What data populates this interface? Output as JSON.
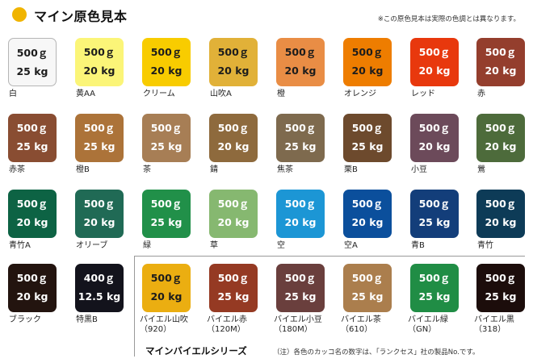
{
  "header": {
    "title": "マイン原色見本",
    "note": "※この原色見本は実際の色調とは異なります。"
  },
  "swatches": [
    {
      "weight": "500ｇ",
      "pack": "25 kg",
      "name": "白",
      "color": "#f7f7f7",
      "text_color": "#1c1c1c"
    },
    {
      "weight": "500ｇ",
      "pack": "20 kg",
      "name": "黄AA",
      "color": "#fbf578",
      "text_color": "#1c1c1c"
    },
    {
      "weight": "500ｇ",
      "pack": "20 kg",
      "name": "クリーム",
      "color": "#f8cc00",
      "text_color": "#1c1c1c"
    },
    {
      "weight": "500ｇ",
      "pack": "20 kg",
      "name": "山吹A",
      "color": "#e1b138",
      "text_color": "#1c1c1c"
    },
    {
      "weight": "500ｇ",
      "pack": "20 kg",
      "name": "橙",
      "color": "#e98d45",
      "text_color": "#1c1c1c"
    },
    {
      "weight": "500ｇ",
      "pack": "20 kg",
      "name": "オレンジ",
      "color": "#ee7d00",
      "text_color": "#1c1c1c"
    },
    {
      "weight": "500ｇ",
      "pack": "20 kg",
      "name": "レッド",
      "color": "#e8380d",
      "text_color": "#ffffff"
    },
    {
      "weight": "500ｇ",
      "pack": "20 kg",
      "name": "赤",
      "color": "#943e2d",
      "text_color": "#ffffff"
    },
    {
      "weight": "500ｇ",
      "pack": "25 kg",
      "name": "赤茶",
      "color": "#894d32",
      "text_color": "#ffffff"
    },
    {
      "weight": "500ｇ",
      "pack": "25 kg",
      "name": "橙B",
      "color": "#ac7339",
      "text_color": "#ffffff"
    },
    {
      "weight": "500ｇ",
      "pack": "25 kg",
      "name": "茶",
      "color": "#a77e55",
      "text_color": "#ffffff"
    },
    {
      "weight": "500ｇ",
      "pack": "20 kg",
      "name": "錆",
      "color": "#8e6a3d",
      "text_color": "#ffffff"
    },
    {
      "weight": "500ｇ",
      "pack": "25 kg",
      "name": "焦茶",
      "color": "#7e6a4e",
      "text_color": "#ffffff"
    },
    {
      "weight": "500ｇ",
      "pack": "25 kg",
      "name": "栗B",
      "color": "#6d4a2d",
      "text_color": "#ffffff"
    },
    {
      "weight": "500ｇ",
      "pack": "20 kg",
      "name": "小豆",
      "color": "#6c4a5a",
      "text_color": "#ffffff"
    },
    {
      "weight": "500ｇ",
      "pack": "20 kg",
      "name": "鶯",
      "color": "#4d6b3b",
      "text_color": "#ffffff"
    },
    {
      "weight": "500ｇ",
      "pack": "20 kg",
      "name": "青竹A",
      "color": "#0d6344",
      "text_color": "#ffffff"
    },
    {
      "weight": "500ｇ",
      "pack": "20 kg",
      "name": "オリーブ",
      "color": "#206a55",
      "text_color": "#ffffff"
    },
    {
      "weight": "500ｇ",
      "pack": "25 kg",
      "name": "緑",
      "color": "#219049",
      "text_color": "#ffffff"
    },
    {
      "weight": "500ｇ",
      "pack": "20 kg",
      "name": "草",
      "color": "#86b870",
      "text_color": "#ffffff"
    },
    {
      "weight": "500ｇ",
      "pack": "20 kg",
      "name": "空",
      "color": "#1c96d5",
      "text_color": "#ffffff"
    },
    {
      "weight": "500ｇ",
      "pack": "20 kg",
      "name": "空A",
      "color": "#0b4f9c",
      "text_color": "#ffffff"
    },
    {
      "weight": "500ｇ",
      "pack": "25 kg",
      "name": "青B",
      "color": "#133e7a",
      "text_color": "#ffffff"
    },
    {
      "weight": "500ｇ",
      "pack": "20 kg",
      "name": "青竹",
      "color": "#0d3b57",
      "text_color": "#ffffff"
    },
    {
      "weight": "500ｇ",
      "pack": "20 kg",
      "name": "ブラック",
      "color": "#23140f",
      "text_color": "#ffffff"
    },
    {
      "weight": "400ｇ",
      "pack": "12.5 kg",
      "name": "特黒B",
      "color": "#13131c",
      "text_color": "#ffffff"
    }
  ],
  "series": {
    "name": "マインバイエルシリーズ",
    "note": "（注）各色のカッコ名の数字は、「ランクセス」社の製品No.です。",
    "swatches": [
      {
        "weight": "500ｇ",
        "pack": "20 kg",
        "name": "バイエル山吹",
        "code": "（920）",
        "color": "#ebae11",
        "text_color": "#1c1c1c"
      },
      {
        "weight": "500ｇ",
        "pack": "25 kg",
        "name": "バイエル赤",
        "code": "（120M）",
        "color": "#953a23",
        "text_color": "#ffffff"
      },
      {
        "weight": "500ｇ",
        "pack": "25 kg",
        "name": "バイエル小豆",
        "code": "（180M）",
        "color": "#6a3f3d",
        "text_color": "#ffffff"
      },
      {
        "weight": "500ｇ",
        "pack": "25 kg",
        "name": "バイエル茶",
        "code": "（610）",
        "color": "#ab7e4d",
        "text_color": "#ffffff"
      },
      {
        "weight": "500ｇ",
        "pack": "25 kg",
        "name": "バイエル緑",
        "code": "（GN）",
        "color": "#208d45",
        "text_color": "#ffffff"
      },
      {
        "weight": "500ｇ",
        "pack": "25 kg",
        "name": "バイエル黒",
        "code": "（318）",
        "color": "#1c0d0b",
        "text_color": "#ffffff"
      }
    ]
  }
}
